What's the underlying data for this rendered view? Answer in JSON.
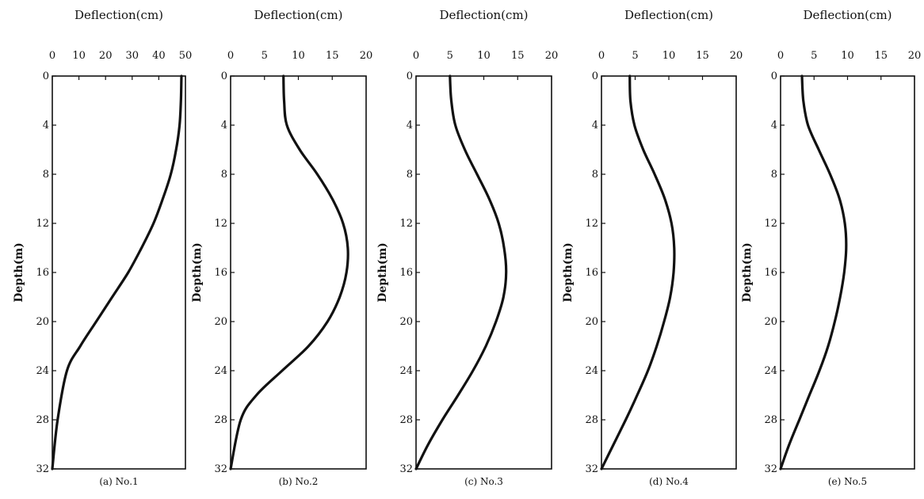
{
  "chart_data": [
    {
      "type": "line",
      "caption": "(a) No.1",
      "title": "Deflection(cm)",
      "xlabel": "Deflection(cm)",
      "ylabel": "Depth(m)",
      "xlim": [
        0,
        50
      ],
      "ylim": [
        0,
        32
      ],
      "y_inverted": true,
      "x_ticks": [
        "0",
        "10",
        "20",
        "30",
        "40",
        "50"
      ],
      "y_ticks": [
        "0",
        "4",
        "8",
        "12",
        "16",
        "20",
        "24",
        "28",
        "32"
      ],
      "grid": false,
      "series": [
        {
          "x": [
            48.5,
            48.3,
            47.8,
            46.5,
            44.5,
            41.5,
            38,
            33.5,
            28.5,
            22.5,
            16.5,
            10.5,
            5.5,
            2,
            0
          ],
          "y": [
            0,
            2,
            4,
            6,
            8,
            10,
            12,
            14,
            16,
            18,
            20,
            22,
            24,
            28,
            32
          ]
        }
      ]
    },
    {
      "type": "line",
      "caption": "(b) No.2",
      "title": "Deflection(cm)",
      "xlabel": "Deflection(cm)",
      "ylabel": "Depth(m)",
      "xlim": [
        0,
        20
      ],
      "ylim": [
        0,
        32
      ],
      "y_inverted": true,
      "x_ticks": [
        "0",
        "5",
        "10",
        "15",
        "20"
      ],
      "y_ticks": [
        "0",
        "4",
        "8",
        "12",
        "16",
        "20",
        "24",
        "28",
        "32"
      ],
      "grid": false,
      "series": [
        {
          "x": [
            7.8,
            7.9,
            8.3,
            10.2,
            12.8,
            15.0,
            16.6,
            17.3,
            17.1,
            16.1,
            14.3,
            11.5,
            7.6,
            3.8,
            1.5,
            0
          ],
          "y": [
            0,
            2,
            4,
            6,
            8,
            10,
            12,
            14,
            16,
            18,
            20,
            22,
            24,
            26,
            28,
            32
          ]
        }
      ]
    },
    {
      "type": "line",
      "caption": "(c) No.3",
      "title": "Deflection(cm)",
      "xlabel": "Deflection(cm)",
      "ylabel": "Depth(m)",
      "xlim": [
        0,
        20
      ],
      "ylim": [
        0,
        32
      ],
      "y_inverted": true,
      "x_ticks": [
        "0",
        "5",
        "10",
        "15",
        "20"
      ],
      "y_ticks": [
        "0",
        "4",
        "8",
        "12",
        "16",
        "20",
        "24",
        "28",
        "32"
      ],
      "grid": false,
      "series": [
        {
          "x": [
            5.0,
            5.2,
            5.8,
            7.2,
            9.0,
            10.8,
            12.2,
            13.0,
            13.3,
            12.9,
            11.8,
            10.3,
            8.4,
            6.2,
            3.9,
            1.8,
            0
          ],
          "y": [
            0,
            2,
            4,
            6,
            8,
            10,
            12,
            14,
            16,
            18,
            20,
            22,
            24,
            26,
            28,
            30,
            32
          ]
        }
      ]
    },
    {
      "type": "line",
      "caption": "(d) No.4",
      "title": "Deflection(cm)",
      "xlabel": "Deflection(cm)",
      "ylabel": "Depth(m)",
      "xlim": [
        0,
        20
      ],
      "ylim": [
        0,
        32
      ],
      "y_inverted": true,
      "x_ticks": [
        "0",
        "5",
        "10",
        "15",
        "20"
      ],
      "y_ticks": [
        "0",
        "4",
        "8",
        "12",
        "16",
        "20",
        "24",
        "28",
        "32"
      ],
      "grid": false,
      "series": [
        {
          "x": [
            4.2,
            4.3,
            4.9,
            6.2,
            7.9,
            9.4,
            10.4,
            10.8,
            10.7,
            10.2,
            9.3,
            8.2,
            6.9,
            5.3,
            3.6,
            1.8,
            0
          ],
          "y": [
            0,
            2,
            4,
            6,
            8,
            10,
            12,
            14,
            16,
            18,
            20,
            22,
            24,
            26,
            28,
            30,
            32
          ]
        }
      ]
    },
    {
      "type": "line",
      "caption": "(e) No.5",
      "title": "Deflection(cm)",
      "xlabel": "Deflection(cm)",
      "ylabel": "Depth(m)",
      "xlim": [
        0,
        20
      ],
      "ylim": [
        0,
        32
      ],
      "y_inverted": true,
      "x_ticks": [
        "0",
        "5",
        "10",
        "15",
        "20"
      ],
      "y_ticks": [
        "0",
        "4",
        "8",
        "12",
        "16",
        "20",
        "24",
        "28",
        "32"
      ],
      "grid": false,
      "series": [
        {
          "x": [
            3.2,
            3.4,
            4.1,
            5.7,
            7.4,
            8.8,
            9.6,
            9.8,
            9.5,
            8.9,
            8.1,
            7.1,
            5.8,
            4.3,
            2.8,
            1.3,
            0
          ],
          "y": [
            0,
            2,
            4,
            6,
            8,
            10,
            12,
            14,
            16,
            18,
            20,
            22,
            24,
            26,
            28,
            30,
            32
          ]
        }
      ]
    }
  ]
}
